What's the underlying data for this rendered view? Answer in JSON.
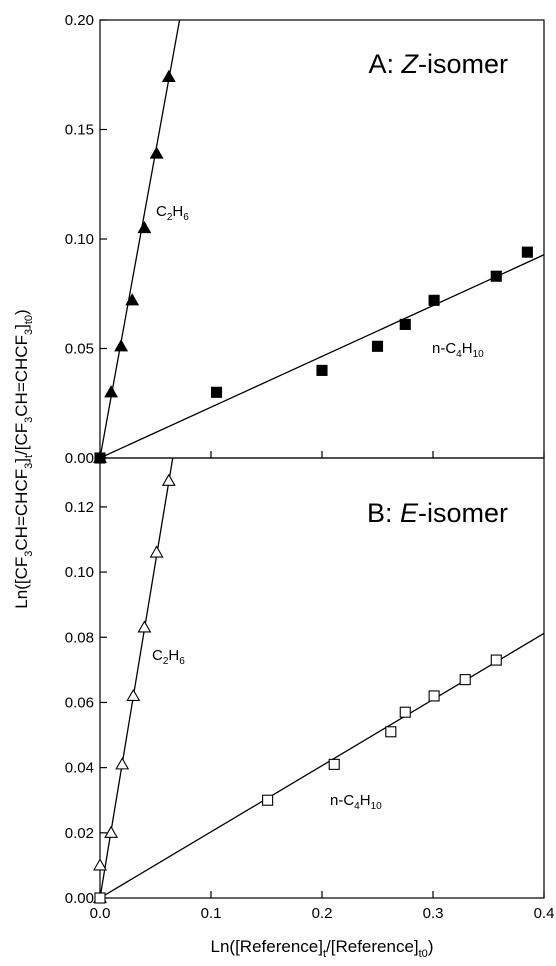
{
  "chart_data": [
    {
      "type": "scatter",
      "panel": "A",
      "title_prefix": "A: ",
      "title_italic": "Z",
      "title_suffix": "-isomer",
      "xlim": [
        0.0,
        0.4
      ],
      "ylim": [
        0.0,
        0.2
      ],
      "x_ticks": [
        "0.0",
        "0.1",
        "0.2",
        "0.3",
        "0.4"
      ],
      "y_ticks": [
        "0.00",
        "0.05",
        "0.10",
        "0.15",
        "0.20"
      ],
      "y_tick_values": [
        0.0,
        0.05,
        0.1,
        0.15,
        0.2
      ],
      "series": [
        {
          "label_main": "C",
          "label_sub1": "2",
          "label_mid": "H",
          "label_sub2": "6",
          "marker": "filled-triangle",
          "points": [
            {
              "x": 0.0,
              "y": 0.0
            },
            {
              "x": 0.01,
              "y": 0.03
            },
            {
              "x": 0.019,
              "y": 0.051
            },
            {
              "x": 0.029,
              "y": 0.072
            },
            {
              "x": 0.04,
              "y": 0.105
            },
            {
              "x": 0.051,
              "y": 0.139
            },
            {
              "x": 0.062,
              "y": 0.174
            }
          ],
          "fit_slope": 2.79
        },
        {
          "label_main": "n-C",
          "label_sub1": "4",
          "label_mid": "H",
          "label_sub2": "10",
          "marker": "filled-square",
          "points": [
            {
              "x": 0.0,
              "y": 0.0
            },
            {
              "x": 0.105,
              "y": 0.03
            },
            {
              "x": 0.2,
              "y": 0.04
            },
            {
              "x": 0.25,
              "y": 0.051
            },
            {
              "x": 0.275,
              "y": 0.061
            },
            {
              "x": 0.301,
              "y": 0.072
            },
            {
              "x": 0.357,
              "y": 0.083
            },
            {
              "x": 0.385,
              "y": 0.094
            }
          ],
          "fit_slope": 0.232
        }
      ]
    },
    {
      "type": "scatter",
      "panel": "B",
      "title_prefix": "B: ",
      "title_italic": "E",
      "title_suffix": "-isomer",
      "xlim": [
        0.0,
        0.4
      ],
      "ylim": [
        0.0,
        0.135
      ],
      "x_ticks": [
        "0.0",
        "0.1",
        "0.2",
        "0.3",
        "0.4"
      ],
      "y_ticks": [
        "0.00",
        "0.02",
        "0.04",
        "0.06",
        "0.08",
        "0.10",
        "0.12"
      ],
      "y_tick_values": [
        0.0,
        0.02,
        0.04,
        0.06,
        0.08,
        0.1,
        0.12
      ],
      "series": [
        {
          "label_main": "C",
          "label_sub1": "2",
          "label_mid": "H",
          "label_sub2": "6",
          "marker": "open-triangle",
          "points": [
            {
              "x": 0.0,
              "y": 0.0
            },
            {
              "x": 0.0,
              "y": 0.01
            },
            {
              "x": 0.01,
              "y": 0.02
            },
            {
              "x": 0.02,
              "y": 0.041
            },
            {
              "x": 0.03,
              "y": 0.062
            },
            {
              "x": 0.04,
              "y": 0.083
            },
            {
              "x": 0.051,
              "y": 0.106
            },
            {
              "x": 0.062,
              "y": 0.128
            }
          ],
          "fit_slope": 2.06
        },
        {
          "label_main": "n-C",
          "label_sub1": "4",
          "label_mid": "H",
          "label_sub2": "10",
          "marker": "open-square",
          "points": [
            {
              "x": 0.0,
              "y": 0.0
            },
            {
              "x": 0.151,
              "y": 0.03
            },
            {
              "x": 0.211,
              "y": 0.041
            },
            {
              "x": 0.262,
              "y": 0.051
            },
            {
              "x": 0.275,
              "y": 0.057
            },
            {
              "x": 0.301,
              "y": 0.062
            },
            {
              "x": 0.329,
              "y": 0.067
            },
            {
              "x": 0.357,
              "y": 0.073
            }
          ],
          "fit_slope": 0.203
        }
      ]
    }
  ],
  "axis_titles": {
    "x": {
      "a": "Ln([Reference]",
      "s1": "t",
      "b": "/[Reference]",
      "s2": "t0",
      "c": ")"
    },
    "y": {
      "a": "Ln([CF",
      "s1": "3",
      "b": "CH=CHCF",
      "s2": "3",
      "c": "]",
      "s3": "t",
      "d": "/[CF",
      "s4": "3",
      "e": "CH=CHCF",
      "s5": "3",
      "f": "]",
      "s6": "t0",
      "g": ")"
    }
  }
}
